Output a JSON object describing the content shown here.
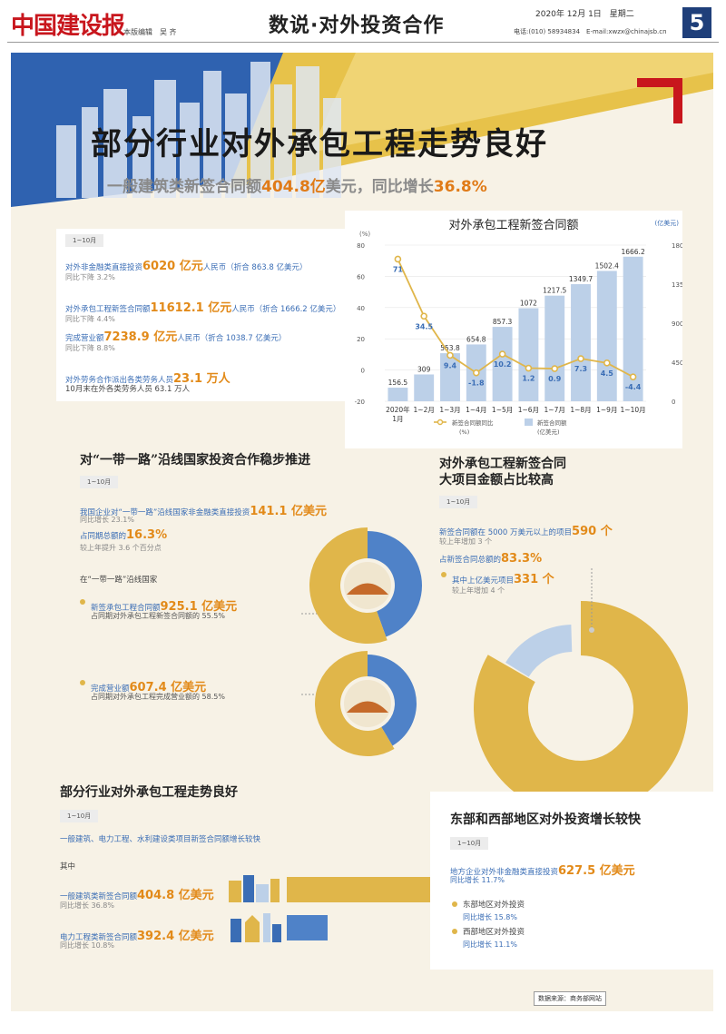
{
  "header": {
    "masthead": "中国建设报",
    "editors": "本版编辑　吴 齐",
    "section_title": "数说·对外投资合作",
    "date": "2020年 12月 1日　星期二",
    "contact": "电话:(010) 58934834　E-mail:xwzx@chinajsb.cn",
    "page_number": "5"
  },
  "banner": {
    "headline": "部分行业对外承包工程走势良好",
    "subheadline_prefix": "一般建筑类新签合同额",
    "subheadline_value": "404.8亿",
    "subheadline_mid": "美元，同比增长",
    "subheadline_rate": "36.8%"
  },
  "colors": {
    "blue": "#3a6db5",
    "orange": "#e28a19",
    "gold": "#e0b64a",
    "light_blue": "#bcd0e8",
    "bg": "#f7f2e6"
  },
  "summary": {
    "period": "1~10月",
    "l1_label": "对外非金融类直接投资",
    "l1_value": "6020 亿元",
    "l1_unit": "人民币（折合 863.8 亿美元）",
    "l1_sub": "同比下降 3.2%",
    "l2_label": "对外承包工程新签合同额",
    "l2_value": "11612.1 亿元",
    "l2_unit": "人民币（折合 1666.2 亿美元）",
    "l2_sub": "同比下降 4.4%",
    "l3_label": "完成营业额",
    "l3_value": "7238.9 亿元",
    "l3_unit": "人民币（折合 1038.7 亿美元）",
    "l3_sub": "同比下降 8.8%",
    "l4_label": "对外劳务合作派出各类劳务人员",
    "l4_value": "23.1 万人",
    "l4_sub": "10月末在外各类劳务人员 63.1 万人"
  },
  "chart_data": {
    "type": "bar+line",
    "title": "对外承包工程新签合同额",
    "left_axis_unit": "(%)",
    "right_axis_unit": "(亿美元)",
    "categories": [
      "2020年\n1月",
      "1~2月",
      "1~3月",
      "1~4月",
      "1~5月",
      "1~6月",
      "1~7月",
      "1~8月",
      "1~9月",
      "1~10月"
    ],
    "series": [
      {
        "name": "新签合同额\n(亿美元)",
        "type": "bar",
        "axis": "right",
        "values": [
          156.5,
          309,
          553.8,
          654.8,
          857.3,
          1072,
          1217.5,
          1349.7,
          1502.4,
          1666.2
        ]
      },
      {
        "name": "新签合同额同比\n(%)",
        "type": "line",
        "axis": "left",
        "values": [
          71,
          34.5,
          9.4,
          -1.8,
          10.2,
          1.2,
          0.9,
          7.3,
          4.5,
          -4.4
        ]
      }
    ],
    "left_ylim": [
      -20,
      80
    ],
    "left_ticks": [
      "80",
      "60",
      "40",
      "20",
      "0",
      "-20"
    ],
    "right_ylim": [
      0,
      1800
    ],
    "right_ticks": [
      "1800",
      "1350",
      "900",
      "450",
      "0"
    ],
    "legend": "bottom"
  },
  "belt_road": {
    "title": "对“一带一路”沿线国家投资合作稳步推进",
    "period": "1~10月",
    "l1_label": "我国企业对“一带一路”沿线国家非金融类直接投资",
    "l1_value": "141.1 亿美元",
    "l1_sub": "同比增长 23.1%",
    "l2_label": "占同期总额的",
    "l2_value": "16.3%",
    "l2_sub": "较上年提升 3.6 个百分点",
    "countries_label": "在“一带一路”沿线国家",
    "contract_label": "新签承包工程合同额",
    "contract_value": "925.1 亿美元",
    "contract_sub": "占同期对外承包工程新签合同额的 55.5%",
    "contract_share": 55.5,
    "revenue_label": "完成营业额",
    "revenue_value": "607.4 亿美元",
    "revenue_sub": "占同期对外承包工程完成营业额的 58.5%",
    "revenue_share": 58.5
  },
  "large_projects": {
    "title_line1": "对外承包工程新签合同",
    "title_line2": "大项目金额占比较高",
    "period": "1~10月",
    "l1_label": "新签合同额在 5000 万美元以上的项目",
    "l1_value": "590 个",
    "l1_sub": "较上年增加 3 个",
    "l2_label": "占新签合同总额的",
    "l2_value": "83.3%",
    "l2_share": 83.3,
    "l3_label": "其中上亿美元项目",
    "l3_value": "331 个",
    "l3_sub": "较上年增加 4 个"
  },
  "industries": {
    "title": "部分行业对外承包工程走势良好",
    "period": "1~10月",
    "intro": "一般建筑、电力工程、水利建设类项目新签合同额增长较快",
    "among": "其中",
    "b1_label": "一般建筑类新签合同额",
    "b1_value": "404.8 亿美元",
    "b1_sub": "同比增长 36.8%",
    "b1_amount": 404.8,
    "b2_label": "电力工程类新签合同额",
    "b2_value": "392.4 亿美元",
    "b2_sub": "同比增长 10.8%",
    "b2_amount": 392.4
  },
  "regions": {
    "title": "东部和西部地区对外投资增长较快",
    "period": "1~10月",
    "l1_label": "地方企业对外非金融类直接投资",
    "l1_value": "627.5 亿美元",
    "l1_sub": "同比增长 11.7%",
    "east_label": "东部地区对外投资",
    "east_sub": "同比增长 15.8%",
    "west_label": "西部地区对外投资",
    "west_sub": "同比增长 11.1%"
  },
  "source": "数据来源：商务部网站"
}
